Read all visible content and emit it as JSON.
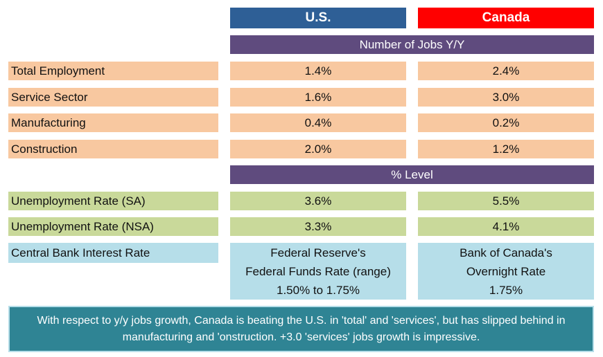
{
  "headers": {
    "us": "U.S.",
    "canada": "Canada"
  },
  "sections": {
    "jobs": "Number of Jobs Y/Y",
    "level": "% Level"
  },
  "jobs_rows": [
    {
      "label": "Total Employment",
      "us": "1.4%",
      "ca": "2.4%"
    },
    {
      "label": "Service Sector",
      "us": "1.6%",
      "ca": "3.0%"
    },
    {
      "label": "Manufacturing",
      "us": "0.4%",
      "ca": "0.2%"
    },
    {
      "label": "Construction",
      "us": "2.0%",
      "ca": "1.2%"
    }
  ],
  "level_rows": [
    {
      "label": "Unemployment Rate (SA)",
      "us": "3.6%",
      "ca": "5.5%"
    },
    {
      "label": "Unemployment Rate (NSA)",
      "us": "3.3%",
      "ca": "4.1%"
    }
  ],
  "interest": {
    "label": "Central Bank Interest Rate",
    "us": [
      "Federal Reserve's",
      "Federal Funds Rate (range)",
      "1.50% to 1.75%"
    ],
    "ca": [
      "Bank of Canada's",
      "Overnight Rate",
      "1.75%"
    ]
  },
  "note": "With respect to y/y jobs growth, Canada is beating the U.S. in 'total' and 'services', but has slipped behind in manufacturing and 'onstruction. +3.0 'services' jobs growth is impressive.",
  "colors": {
    "us_header": "#2e5f96",
    "canada_header": "#ff0000",
    "section_bar": "#5f4b7e",
    "jobs_rows": "#f8c8a0",
    "level_rows": "#c9d99a",
    "interest_rows": "#b6dee9",
    "note_bg": "#2f8494"
  }
}
